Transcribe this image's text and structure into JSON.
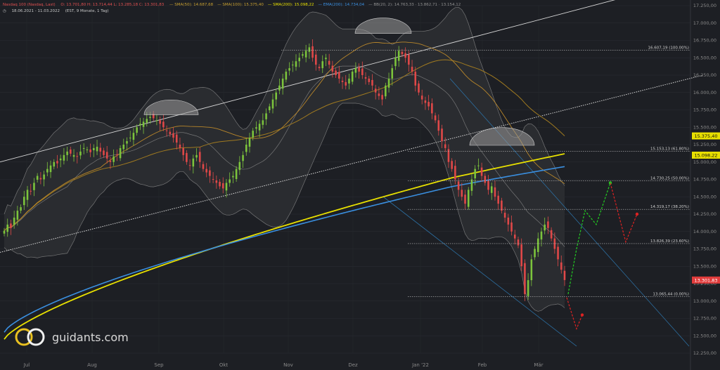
{
  "header": {
    "instrument": "Nasdaq 100 (Nasdaq, Last)",
    "ohlc": "O: 13.701,80  H: 13.714,44  L: 13.285,18  C: 13.301,83",
    "indicators": [
      {
        "label": "SMA(50)",
        "value": "14.687,68",
        "color": "#c8a030"
      },
      {
        "label": "SMA(100)",
        "value": "15.375,40",
        "color": "#c8a030"
      },
      {
        "label": "SMA(200)",
        "value": "15.098,22",
        "color": "#e8e000"
      },
      {
        "label": "EMA(200)",
        "value": "14.734,04",
        "color": "#3a8fe0"
      },
      {
        "label": "BB(20, 2)",
        "value": "14.763,33 · 13.862,71 · 13.154,12",
        "color": "#909090"
      }
    ],
    "range": "18.06.2021 - 11.03.2022",
    "interval": "(EST, 9 Monate, 1 Tag)"
  },
  "logo": {
    "text": "guidants.com"
  },
  "colors": {
    "background": "#1d1f24",
    "up": "#7cc43c",
    "down": "#e04848",
    "sma200": "#e8e000",
    "ema200": "#3a8fe0",
    "sma100": "#a07a20",
    "bollinger": "#8a8a8a",
    "fib_label_bg": "#e8e000"
  },
  "chart_data": {
    "type": "candlestick",
    "title": "Nasdaq 100",
    "x_axis": {
      "labels": [
        "Jul",
        "Aug",
        "Sep",
        "Okt",
        "Nov",
        "Dez",
        "Jan '22",
        "Feb",
        "Mär"
      ]
    },
    "y_axis": {
      "range": [
        12250,
        17250
      ],
      "ticks": [
        "17.250,00",
        "17.000,00",
        "16.750,00",
        "16.500,00",
        "16.250,00",
        "16.000,00",
        "15.750,00",
        "15.500,00",
        "15.250,00",
        "15.000,00",
        "14.750,00",
        "14.500,00",
        "14.250,00",
        "14.000,00",
        "13.750,00",
        "13.500,00",
        "13.250,00",
        "13.000,00",
        "12.750,00",
        "12.500,00",
        "12.250,00"
      ]
    },
    "price_labels": [
      {
        "text": "15.375,40",
        "value": 15375.4,
        "style": "yellow"
      },
      {
        "text": "15.098,22",
        "value": 15098.22,
        "style": "yellow"
      },
      {
        "text": "13.301,83",
        "value": 13301.83,
        "style": "red"
      }
    ],
    "fibonacci": [
      {
        "text": "16.607,19 (100.00%)",
        "value": 16607.19
      },
      {
        "text": "15.153,13 (61.80%)",
        "value": 15153.13
      },
      {
        "text": "14.730,25 (50.00%)",
        "value": 14730.25
      },
      {
        "text": "14.319,17 (38.20%)",
        "value": 14319.17
      },
      {
        "text": "13.826,39 (23.60%)",
        "value": 13826.39
      },
      {
        "text": "13.065,44 (0.00%)",
        "value": 13065.44
      }
    ],
    "close_series": [
      14010,
      14100,
      14050,
      14200,
      14300,
      14350,
      14500,
      14600,
      14580,
      14700,
      14800,
      14750,
      14820,
      14900,
      14950,
      15000,
      14980,
      15050,
      15100,
      15150,
      15120,
      15100,
      15080,
      15150,
      15200,
      15180,
      15140,
      15200,
      15220,
      15150,
      15100,
      15050,
      15000,
      15080,
      15100,
      15200,
      15250,
      15300,
      15350,
      15420,
      15500,
      15550,
      15580,
      15620,
      15650,
      15630,
      15600,
      15550,
      15500,
      15450,
      15400,
      15350,
      15280,
      15200,
      15100,
      15000,
      14950,
      15050,
      15100,
      15000,
      14900,
      14850,
      14800,
      14750,
      14700,
      14650,
      14620,
      14700,
      14750,
      14800,
      14900,
      15000,
      15100,
      15250,
      15350,
      15450,
      15500,
      15550,
      15600,
      15700,
      15800,
      15900,
      16000,
      16100,
      16200,
      16300,
      16350,
      16400,
      16450,
      16500,
      16550,
      16600,
      16650,
      16500,
      16400,
      16350,
      16450,
      16500,
      16400,
      16300,
      16250,
      16200,
      16150,
      16100,
      16200,
      16300,
      16350,
      16300,
      16250,
      16200,
      16150,
      16100,
      16000,
      15950,
      15900,
      16100,
      16200,
      16350,
      16500,
      16600,
      16550,
      16500,
      16400,
      16300,
      16100,
      16000,
      15900,
      15850,
      15800,
      15700,
      15600,
      15450,
      15300,
      15200,
      15000,
      14900,
      14750,
      14600,
      14500,
      14400,
      14600,
      14750,
      14900,
      14950,
      14800,
      14700,
      14600,
      14650,
      14500,
      14400,
      14300,
      14200,
      14100,
      14000,
      13900,
      13800,
      13500,
      13100,
      13300,
      13600,
      13750,
      13900,
      14000,
      14100,
      14050,
      13900,
      13750,
      13600,
      13450,
      13301.83
    ],
    "bollinger": {
      "upper_last": 14763.33,
      "middle_last": 13862.71,
      "lower_last": 13154.12
    },
    "moving_averages": [
      {
        "name": "SMA(200)",
        "last": 15098.22
      },
      {
        "name": "SMA(100)",
        "last": 15375.4
      },
      {
        "name": "SMA(50)",
        "last": 14687.68
      },
      {
        "name": "EMA(200)",
        "last": 14734.04
      }
    ],
    "annotations": [
      {
        "type": "scenario",
        "name": "bullish",
        "color": "#22cc22",
        "values": [
          13100,
          13750,
          14300,
          14100,
          14700
        ]
      },
      {
        "type": "scenario",
        "name": "bearish",
        "color": "#dd2222",
        "values": [
          14700,
          13850,
          14250
        ]
      },
      {
        "type": "scenario",
        "name": "bearish-down",
        "color": "#dd2222",
        "values": [
          13050,
          12600,
          12800
        ]
      }
    ]
  }
}
